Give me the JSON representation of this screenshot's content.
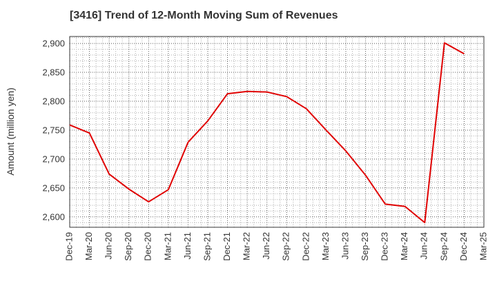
{
  "chart_data": {
    "type": "line",
    "title": "[3416]  Trend of 12-Month Moving Sum of Revenues",
    "ylabel": "Amount (million yen)",
    "xlabel": "",
    "ylim": [
      2582,
      2912
    ],
    "y_ticks": [
      2600,
      2650,
      2700,
      2750,
      2800,
      2850,
      2900
    ],
    "y_tick_labels": [
      "2,600",
      "2,650",
      "2,700",
      "2,750",
      "2,800",
      "2,850",
      "2,900"
    ],
    "x_tick_labels": [
      "Dec-19",
      "Mar-20",
      "Jun-20",
      "Sep-20",
      "Dec-20",
      "Mar-21",
      "Jun-21",
      "Sep-21",
      "Dec-21",
      "Mar-22",
      "Jun-22",
      "Sep-22",
      "Dec-22",
      "Mar-23",
      "Jun-23",
      "Sep-23",
      "Dec-23",
      "Mar-24",
      "Jun-24",
      "Sep-24",
      "Dec-24",
      "Mar-25"
    ],
    "grid": true,
    "series": [
      {
        "color": "#e00000",
        "x": [
          "Dec-19",
          "Mar-20",
          "Jun-20",
          "Sep-20",
          "Dec-20",
          "Mar-21",
          "Jun-21",
          "Sep-21",
          "Dec-21",
          "Mar-22",
          "Jun-22",
          "Sep-22",
          "Dec-22",
          "Mar-23",
          "Jun-23",
          "Sep-23",
          "Dec-23",
          "Mar-24",
          "Jun-24",
          "Sep-24",
          "Dec-24"
        ],
        "values": [
          2759,
          2745,
          2674,
          2648,
          2626,
          2647,
          2729,
          2766,
          2813,
          2817,
          2816,
          2808,
          2787,
          2750,
          2714,
          2672,
          2622,
          2618,
          2590,
          2901,
          2882
        ]
      }
    ]
  }
}
